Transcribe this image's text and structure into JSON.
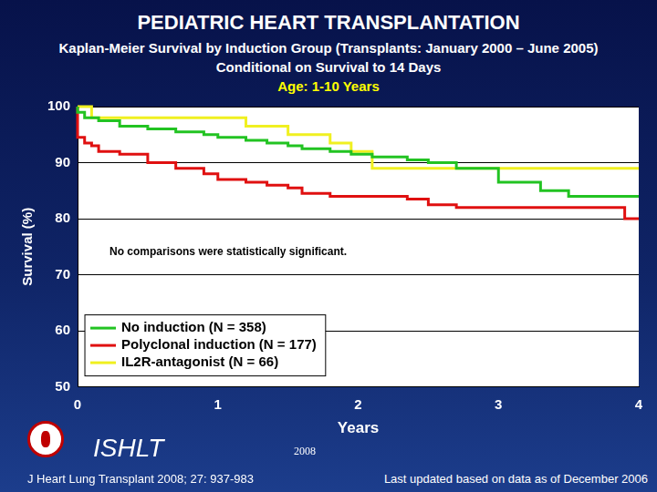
{
  "chart_data": {
    "type": "line",
    "title": "PEDIATRIC HEART TRANSPLANTATION",
    "subtitle": [
      "Kaplan-Meier Survival by Induction Group (Transplants: January 2000 – June 2005)",
      "Conditional on Survival to 14 Days",
      "Age: 1-10 Years"
    ],
    "x_label": "Years",
    "y_label": "Survival (%)",
    "annotations": [
      "No comparisons were statistically significant."
    ],
    "x": [
      0,
      0.05,
      0.1,
      0.15,
      0.3,
      0.5,
      0.7,
      0.9,
      1.0,
      1.2,
      1.35,
      1.5,
      1.6,
      1.8,
      1.95,
      2.1,
      2.35,
      2.5,
      2.7,
      3.0,
      3.3,
      3.5,
      3.9,
      4.0
    ],
    "series": [
      {
        "name": "No induction (N = 358)",
        "color": "#22c322",
        "values": [
          100,
          99,
          98,
          98,
          97.5,
          96.5,
          96,
          95.5,
          95,
          94.5,
          94,
          93.5,
          93,
          92.5,
          92,
          91.5,
          91,
          90.5,
          90,
          89,
          86.5,
          85,
          84,
          84
        ]
      },
      {
        "name": "Polyclonal induction (N = 177)",
        "color": "#e01010",
        "values": [
          100,
          94.5,
          93.5,
          93,
          92,
          91.5,
          90,
          89,
          88,
          87,
          86.5,
          86,
          85.5,
          84.5,
          84,
          84,
          84,
          83.5,
          82.5,
          82,
          82,
          82,
          82,
          80
        ]
      },
      {
        "name": "IL2R-antagonist (N = 66)",
        "color": "#f0f020",
        "values": [
          100,
          100,
          100,
          98,
          98,
          98,
          98,
          98,
          98,
          98,
          96.5,
          96.5,
          95,
          95,
          93.5,
          92,
          89,
          89,
          89,
          89,
          89,
          89,
          89,
          89
        ]
      }
    ],
    "line_style": "step",
    "xlim": [
      0,
      4
    ],
    "xticks": [
      0,
      1,
      2,
      3,
      4
    ],
    "ylim": [
      50,
      100
    ],
    "yticks": [
      50,
      60,
      70,
      80,
      90,
      100
    ],
    "grid": true,
    "legend": "lower left"
  },
  "footer": {
    "org": "ISHLT",
    "year": "2008",
    "citation": "J Heart Lung Transplant 2008; 27: 937-983",
    "updated": "Last updated based on data as of December 2006"
  }
}
